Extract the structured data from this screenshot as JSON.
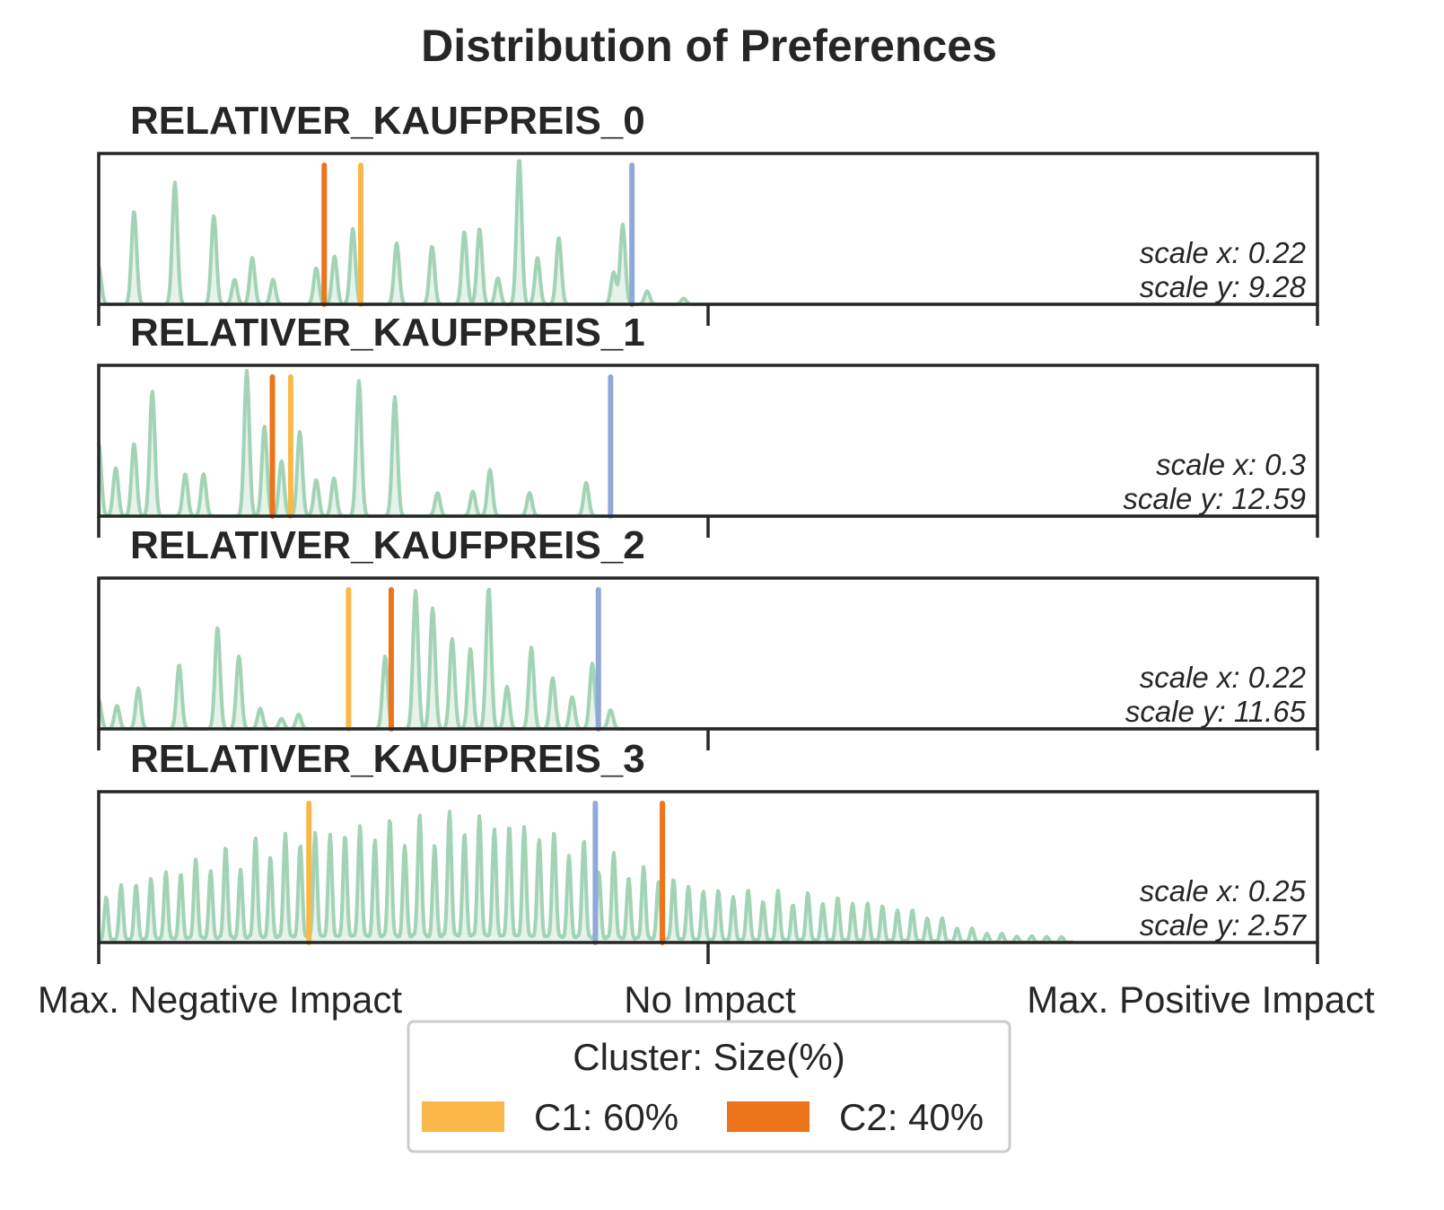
{
  "chart_data": {
    "type": "area",
    "title": "Distribution of Preferences",
    "x_tick_labels": [
      "Max. Negative Impact",
      "No Impact",
      "Max. Positive Impact"
    ],
    "xlim": [
      -1,
      1
    ],
    "legend": {
      "title": "Cluster: Size(%)",
      "placement": "bottom-center",
      "entries": [
        {
          "label": "C1: 60%",
          "color": "#fbb84a"
        },
        {
          "label": "C2: 40%",
          "color": "#ee741c"
        }
      ]
    },
    "colors": {
      "distribution": "#a2d3b5",
      "distribution_fill": "#e5f3ea",
      "overall_marker": "#8fa9d9",
      "frame": "#262626"
    },
    "panels": [
      {
        "title": "RELATIVER_KAUFPREIS_0",
        "scale_x": "scale x: 0.22",
        "scale_y": "scale y: 9.28",
        "markers": {
          "C1": -0.57,
          "C2": -0.63,
          "overall": -0.125
        },
        "peaks": [
          {
            "x": -1.0,
            "h": 0.26
          },
          {
            "x": -0.942,
            "h": 0.64
          },
          {
            "x": -0.875,
            "h": 0.84
          },
          {
            "x": -0.811,
            "h": 0.61
          },
          {
            "x": -0.777,
            "h": 0.17
          },
          {
            "x": -0.748,
            "h": 0.32
          },
          {
            "x": -0.714,
            "h": 0.17
          },
          {
            "x": -0.643,
            "h": 0.25
          },
          {
            "x": -0.613,
            "h": 0.33
          },
          {
            "x": -0.583,
            "h": 0.52
          },
          {
            "x": -0.511,
            "h": 0.42
          },
          {
            "x": -0.453,
            "h": 0.4
          },
          {
            "x": -0.4,
            "h": 0.5
          },
          {
            "x": -0.375,
            "h": 0.52
          },
          {
            "x": -0.345,
            "h": 0.18
          },
          {
            "x": -0.31,
            "h": 1.0
          },
          {
            "x": -0.28,
            "h": 0.32
          },
          {
            "x": -0.245,
            "h": 0.46
          },
          {
            "x": -0.155,
            "h": 0.22
          },
          {
            "x": -0.14,
            "h": 0.55
          },
          {
            "x": -0.1,
            "h": 0.09
          },
          {
            "x": -0.04,
            "h": 0.04
          }
        ]
      },
      {
        "title": "RELATIVER_KAUFPREIS_1",
        "scale_x": "scale x: 0.3",
        "scale_y": "scale y: 12.59",
        "markers": {
          "C1": -0.685,
          "C2": -0.715,
          "overall": -0.16
        },
        "peaks": [
          {
            "x": -1.0,
            "h": 0.5
          },
          {
            "x": -0.972,
            "h": 0.33
          },
          {
            "x": -0.942,
            "h": 0.5
          },
          {
            "x": -0.912,
            "h": 0.86
          },
          {
            "x": -0.858,
            "h": 0.29
          },
          {
            "x": -0.828,
            "h": 0.29
          },
          {
            "x": -0.757,
            "h": 1.0
          },
          {
            "x": -0.728,
            "h": 0.62
          },
          {
            "x": -0.7,
            "h": 0.38
          },
          {
            "x": -0.67,
            "h": 0.58
          },
          {
            "x": -0.643,
            "h": 0.25
          },
          {
            "x": -0.614,
            "h": 0.26
          },
          {
            "x": -0.573,
            "h": 0.93
          },
          {
            "x": -0.514,
            "h": 0.82
          },
          {
            "x": -0.444,
            "h": 0.16
          },
          {
            "x": -0.386,
            "h": 0.17
          },
          {
            "x": -0.358,
            "h": 0.32
          },
          {
            "x": -0.293,
            "h": 0.16
          },
          {
            "x": -0.2,
            "h": 0.23
          }
        ]
      },
      {
        "title": "RELATIVER_KAUFPREIS_2",
        "scale_x": "scale x: 0.22",
        "scale_y": "scale y: 11.65",
        "markers": {
          "C1": -0.59,
          "C2": -0.52,
          "overall": -0.18
        },
        "peaks": [
          {
            "x": -1.0,
            "h": 0.2
          },
          {
            "x": -0.97,
            "h": 0.16
          },
          {
            "x": -0.935,
            "h": 0.28
          },
          {
            "x": -0.868,
            "h": 0.44
          },
          {
            "x": -0.805,
            "h": 0.7
          },
          {
            "x": -0.77,
            "h": 0.5
          },
          {
            "x": -0.735,
            "h": 0.14
          },
          {
            "x": -0.7,
            "h": 0.07
          },
          {
            "x": -0.672,
            "h": 0.1
          },
          {
            "x": -0.53,
            "h": 0.5
          },
          {
            "x": -0.48,
            "h": 0.95
          },
          {
            "x": -0.452,
            "h": 0.83
          },
          {
            "x": -0.42,
            "h": 0.62
          },
          {
            "x": -0.39,
            "h": 0.55
          },
          {
            "x": -0.36,
            "h": 0.97
          },
          {
            "x": -0.33,
            "h": 0.29
          },
          {
            "x": -0.29,
            "h": 0.56
          },
          {
            "x": -0.255,
            "h": 0.35
          },
          {
            "x": -0.223,
            "h": 0.22
          },
          {
            "x": -0.19,
            "h": 0.45
          },
          {
            "x": -0.16,
            "h": 0.13
          }
        ]
      },
      {
        "title": "RELATIVER_KAUFPREIS_3",
        "scale_x": "scale x: 0.25",
        "scale_y": "scale y: 2.57",
        "markers": {
          "C1": -0.655,
          "C2": -0.075,
          "overall": -0.185
        },
        "envelope": [
          {
            "x": -1.0,
            "h": 0.36
          },
          {
            "x": -0.9,
            "h": 0.5
          },
          {
            "x": -0.75,
            "h": 0.72
          },
          {
            "x": -0.65,
            "h": 0.8
          },
          {
            "x": -0.5,
            "h": 0.87
          },
          {
            "x": -0.4,
            "h": 0.92
          },
          {
            "x": -0.3,
            "h": 0.85
          },
          {
            "x": -0.2,
            "h": 0.7
          },
          {
            "x": -0.1,
            "h": 0.52
          },
          {
            "x": 0.0,
            "h": 0.38
          },
          {
            "x": 0.15,
            "h": 0.35
          },
          {
            "x": 0.25,
            "h": 0.3
          },
          {
            "x": 0.35,
            "h": 0.22
          },
          {
            "x": 0.43,
            "h": 0.1
          },
          {
            "x": 0.5,
            "h": 0.05
          },
          {
            "x": 0.6,
            "h": 0.04
          }
        ]
      }
    ]
  }
}
